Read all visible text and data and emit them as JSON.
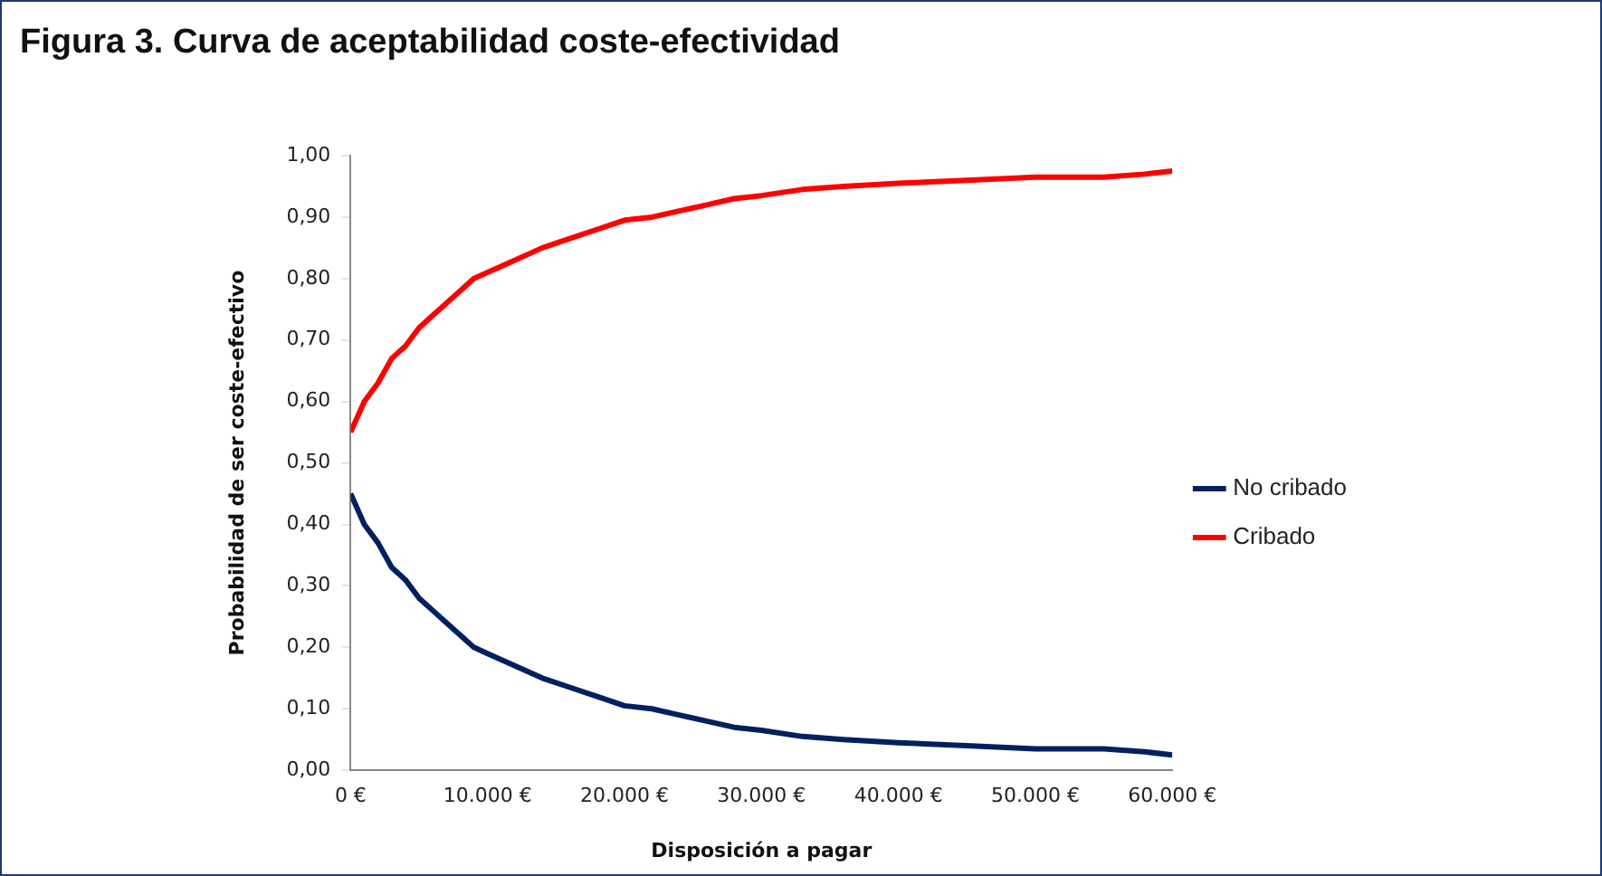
{
  "chart_data": {
    "type": "line",
    "title": "Figura 3. Curva de aceptabilidad coste-efectividad",
    "xlabel": "Disposición a pagar",
    "ylabel": "Probabilidad de ser coste-efectivo",
    "x": [
      0,
      1000,
      2000,
      3000,
      4000,
      5000,
      6000,
      7000,
      8000,
      9000,
      10000,
      12000,
      14000,
      16000,
      18000,
      20000,
      22000,
      24000,
      26000,
      28000,
      30000,
      33000,
      36000,
      40000,
      45000,
      50000,
      55000,
      58000,
      60000
    ],
    "series": [
      {
        "name": "No cribado",
        "color": "#002060",
        "values": [
          0.45,
          0.4,
          0.37,
          0.33,
          0.31,
          0.28,
          0.26,
          0.24,
          0.22,
          0.2,
          0.19,
          0.17,
          0.15,
          0.135,
          0.12,
          0.105,
          0.1,
          0.09,
          0.08,
          0.07,
          0.065,
          0.055,
          0.05,
          0.045,
          0.04,
          0.035,
          0.035,
          0.03,
          0.025
        ]
      },
      {
        "name": "Cribado",
        "color": "#ff0000",
        "values": [
          0.55,
          0.6,
          0.63,
          0.67,
          0.69,
          0.72,
          0.74,
          0.76,
          0.78,
          0.8,
          0.81,
          0.83,
          0.85,
          0.865,
          0.88,
          0.895,
          0.9,
          0.91,
          0.92,
          0.93,
          0.935,
          0.945,
          0.95,
          0.955,
          0.96,
          0.965,
          0.965,
          0.97,
          0.975
        ]
      }
    ],
    "xlim": [
      0,
      60000
    ],
    "xticks": [
      {
        "value": 0,
        "label": "0 €"
      },
      {
        "value": 10000,
        "label": "10.000 €"
      },
      {
        "value": 20000,
        "label": "20.000 €"
      },
      {
        "value": 30000,
        "label": "30.000 €"
      },
      {
        "value": 40000,
        "label": "40.000 €"
      },
      {
        "value": 50000,
        "label": "50.000 €"
      },
      {
        "value": 60000,
        "label": "60.000 €"
      }
    ],
    "ylim": [
      0,
      1
    ],
    "yticks": [
      {
        "value": 0,
        "label": "0,00"
      },
      {
        "value": 0.1,
        "label": "0,10"
      },
      {
        "value": 0.2,
        "label": "0,20"
      },
      {
        "value": 0.3,
        "label": "0,30"
      },
      {
        "value": 0.4,
        "label": "0,40"
      },
      {
        "value": 0.5,
        "label": "0,50"
      },
      {
        "value": 0.6,
        "label": "0,60"
      },
      {
        "value": 0.7,
        "label": "0,70"
      },
      {
        "value": 0.8,
        "label": "0,80"
      },
      {
        "value": 0.9,
        "label": "0,90"
      },
      {
        "value": 1,
        "label": "1,00"
      }
    ],
    "grid": false,
    "legend": "right",
    "marker": "none",
    "line_style": "solid"
  }
}
